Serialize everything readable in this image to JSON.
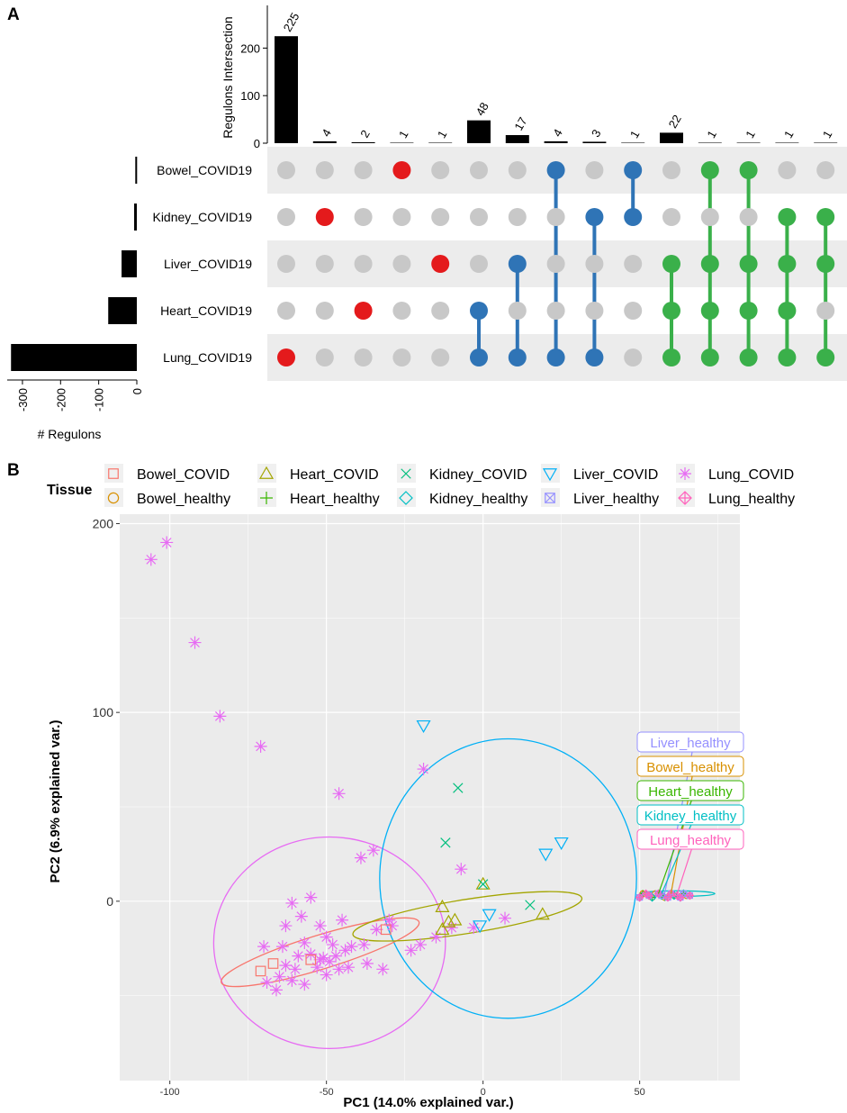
{
  "panel_labels": {
    "a": "A",
    "b": "B"
  },
  "chart_data": [
    {
      "type": "bar",
      "subtype": "upset",
      "panel": "A",
      "colors": {
        "bar": "#000000",
        "inactive_dot": "#c8c8c8",
        "single": "#e41a1c",
        "two_way": "#2f74b6",
        "multi": "#3ab04a",
        "band": "#ececec"
      },
      "intersection_axis": {
        "label": "Regulons Intersection",
        "ticks": [
          "0",
          "100",
          "200"
        ],
        "ylim": [
          0,
          250
        ]
      },
      "set_size_axis": {
        "label": "# Regulons",
        "ticks": [
          "-300",
          "-200",
          "-100",
          "0"
        ],
        "xlim": [
          -340,
          0
        ]
      },
      "sets": [
        {
          "name": "Bowel_COVID19",
          "size": -4
        },
        {
          "name": "Kidney_COVID19",
          "size": -7
        },
        {
          "name": "Liver_COVID19",
          "size": -40
        },
        {
          "name": "Heart_COVID19",
          "size": -75
        },
        {
          "name": "Lung_COVID19",
          "size": -330
        }
      ],
      "intersections": [
        {
          "value": 225,
          "label": "225",
          "sets": [
            4
          ],
          "group": "single"
        },
        {
          "value": 4,
          "label": "4",
          "sets": [
            1
          ],
          "group": "single"
        },
        {
          "value": 2,
          "label": "2",
          "sets": [
            3
          ],
          "group": "single"
        },
        {
          "value": 1,
          "label": "1",
          "sets": [
            0
          ],
          "group": "single"
        },
        {
          "value": 1,
          "label": "1",
          "sets": [
            2
          ],
          "group": "single"
        },
        {
          "value": 48,
          "label": "48",
          "sets": [
            3,
            4
          ],
          "group": "two_way"
        },
        {
          "value": 17,
          "label": "17",
          "sets": [
            2,
            4
          ],
          "group": "two_way"
        },
        {
          "value": 4,
          "label": "4",
          "sets": [
            0,
            4
          ],
          "group": "two_way"
        },
        {
          "value": 3,
          "label": "3",
          "sets": [
            1,
            4
          ],
          "group": "two_way"
        },
        {
          "value": 1,
          "label": "1",
          "sets": [
            0,
            1
          ],
          "group": "two_way"
        },
        {
          "value": 22,
          "label": "22",
          "sets": [
            2,
            3,
            4
          ],
          "group": "multi"
        },
        {
          "value": 1,
          "label": "1",
          "sets": [
            0,
            2,
            3,
            4
          ],
          "group": "multi"
        },
        {
          "value": 1,
          "label": "1",
          "sets": [
            0,
            2,
            3,
            4
          ],
          "group": "multi"
        },
        {
          "value": 1,
          "label": "1",
          "sets": [
            1,
            2,
            3,
            4
          ],
          "group": "multi"
        },
        {
          "value": 1,
          "label": "1",
          "sets": [
            1,
            2,
            4
          ],
          "group": "multi"
        }
      ]
    },
    {
      "type": "scatter",
      "subtype": "pca",
      "panel": "B",
      "xlabel": "PC1 (14.0% explained var.)",
      "ylabel": "PC2 (6.9% explained var.)",
      "xlim": [
        -116,
        82
      ],
      "ylim": [
        -95,
        205
      ],
      "xticks": [
        -100,
        -50,
        0,
        50
      ],
      "yticks": [
        0,
        100,
        200
      ],
      "panel_bg": "#ebebeb",
      "legend": {
        "title": "Tissue",
        "entries": [
          {
            "name": "Bowel_COVID",
            "shape": "square",
            "color": "#f8766d"
          },
          {
            "name": "Heart_COVID",
            "shape": "triangle",
            "color": "#a3a500"
          },
          {
            "name": "Kidney_COVID",
            "shape": "x",
            "color": "#00bf7d"
          },
          {
            "name": "Liver_COVID",
            "shape": "triangle-down",
            "color": "#00b0f6"
          },
          {
            "name": "Lung_COVID",
            "shape": "asterisk",
            "color": "#e76bf3"
          },
          {
            "name": "Bowel_healthy",
            "shape": "circle",
            "color": "#d89000"
          },
          {
            "name": "Heart_healthy",
            "shape": "plus",
            "color": "#39b600"
          },
          {
            "name": "Kidney_healthy",
            "shape": "diamond",
            "color": "#00bfc4"
          },
          {
            "name": "Liver_healthy",
            "shape": "square-x",
            "color": "#9590ff"
          },
          {
            "name": "Lung_healthy",
            "shape": "diamond-plus",
            "color": "#ff62bc"
          }
        ]
      },
      "series": [
        {
          "name": "Lung_COVID",
          "shape": "asterisk",
          "color": "#e76bf3",
          "points": [
            [
              -106,
              181
            ],
            [
              -101,
              190
            ],
            [
              -92,
              137
            ],
            [
              -84,
              98
            ],
            [
              -71,
              82
            ],
            [
              -46,
              57
            ],
            [
              -19,
              70
            ],
            [
              -35,
              27
            ],
            [
              -39,
              23
            ],
            [
              -7,
              17
            ],
            [
              -61,
              -1
            ],
            [
              -55,
              2
            ],
            [
              -58,
              -8
            ],
            [
              -63,
              -13
            ],
            [
              -52,
              -13
            ],
            [
              -45,
              -10
            ],
            [
              -34,
              -15
            ],
            [
              -50,
              -19
            ],
            [
              -57,
              -22
            ],
            [
              -64,
              -24
            ],
            [
              -70,
              -24
            ],
            [
              -48,
              -23
            ],
            [
              -42,
              -24
            ],
            [
              -38,
              -23
            ],
            [
              -30,
              -10
            ],
            [
              -29,
              -13
            ],
            [
              -23,
              -26
            ],
            [
              -20,
              -23
            ],
            [
              -15,
              -19
            ],
            [
              -10,
              -14
            ],
            [
              -3,
              -14
            ],
            [
              7,
              -9
            ],
            [
              -59,
              -29
            ],
            [
              -55,
              -28
            ],
            [
              -52,
              -31
            ],
            [
              -49,
              -32
            ],
            [
              -46,
              -36
            ],
            [
              -53,
              -35
            ],
            [
              -60,
              -36
            ],
            [
              -63,
              -34
            ],
            [
              -65,
              -40
            ],
            [
              -61,
              -42
            ],
            [
              -57,
              -44
            ],
            [
              -50,
              -39
            ],
            [
              -43,
              -35
            ],
            [
              -37,
              -33
            ],
            [
              -32,
              -36
            ],
            [
              -69,
              -43
            ],
            [
              -66,
              -47
            ],
            [
              -51,
              -30
            ],
            [
              -47,
              -29
            ],
            [
              -44,
              -26
            ]
          ]
        },
        {
          "name": "Bowel_COVID",
          "shape": "square",
          "color": "#f8766d",
          "points": [
            [
              -71,
              -37
            ],
            [
              -67,
              -33
            ],
            [
              -55,
              -31
            ],
            [
              -31,
              -15
            ]
          ]
        },
        {
          "name": "Heart_COVID",
          "shape": "triangle",
          "color": "#a3a500",
          "points": [
            [
              0,
              9
            ],
            [
              -13,
              -3
            ],
            [
              -9,
              -10
            ],
            [
              -11,
              -11
            ],
            [
              -13,
              -15
            ],
            [
              19,
              -7
            ]
          ]
        },
        {
          "name": "Kidney_COVID",
          "shape": "x",
          "color": "#00bf7d",
          "points": [
            [
              -8,
              60
            ],
            [
              -12,
              31
            ],
            [
              0,
              9
            ],
            [
              15,
              -2
            ]
          ]
        },
        {
          "name": "Liver_COVID",
          "shape": "triangle-down",
          "color": "#00b0f6",
          "points": [
            [
              -19,
              93
            ],
            [
              20,
              25
            ],
            [
              25,
              31
            ],
            [
              2,
              -7
            ],
            [
              -1,
              -13
            ]
          ]
        }
      ],
      "healthy_points": {
        "x_range": [
          50,
          67
        ],
        "y_center": 3
      },
      "ellipses": [
        {
          "name": "Lung_COVID",
          "color": "#e76bf3",
          "cx": -49,
          "cy": -22,
          "rx": 37,
          "ry": 56,
          "angle": 0
        },
        {
          "name": "Liver_COVID",
          "color": "#00b0f6",
          "cx": 8,
          "cy": 12,
          "rx": 41,
          "ry": 74,
          "angle": 0
        },
        {
          "name": "Bowel_COVID",
          "color": "#f8766d",
          "cx": -52,
          "cy": -27,
          "rx": 33,
          "ry": 9,
          "angle": -17
        },
        {
          "name": "Heart_COVID",
          "color": "#a3a500",
          "cx": -5,
          "cy": -8,
          "rx": 37,
          "ry": 9,
          "angle": -9
        },
        {
          "name": "healthy",
          "color": "#00bfc4",
          "cx": 62,
          "cy": 4,
          "rx": 12,
          "ry": 1.5,
          "angle": 0
        }
      ],
      "annotations": [
        {
          "text": "Liver_healthy",
          "color": "#9590ff",
          "target": [
            58,
            4
          ]
        },
        {
          "text": "Bowel_healthy",
          "color": "#d89000",
          "target": [
            60,
            4
          ]
        },
        {
          "text": "Heart_healthy",
          "color": "#39b600",
          "target": [
            56,
            4
          ]
        },
        {
          "text": "Kidney_healthy",
          "color": "#00bfc4",
          "target": [
            57,
            4
          ]
        },
        {
          "text": "Lung_healthy",
          "color": "#ff62bc",
          "target": [
            62,
            4
          ]
        }
      ]
    }
  ]
}
